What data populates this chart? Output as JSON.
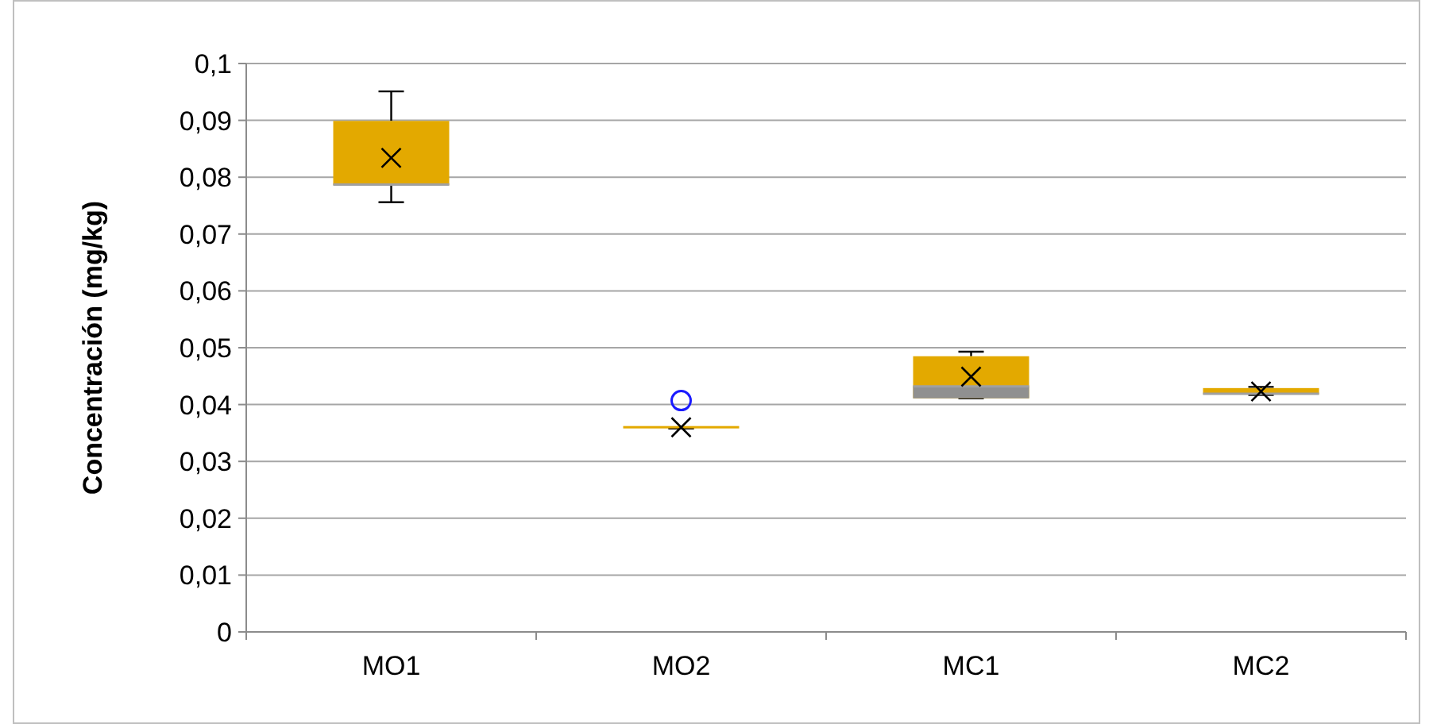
{
  "chart_data": {
    "type": "box",
    "ylabel": "Concentración (mg/kg)",
    "categories": [
      "MO1",
      "MO2",
      "MC1",
      "MC2"
    ],
    "series": [
      {
        "color": "#e3a900",
        "boxes": [
          {
            "low": 0.0756,
            "q1": 0.0786,
            "median": 0.0787,
            "q3": 0.0899,
            "high": 0.0951,
            "mean": 0.0834
          },
          {
            "low": 0.0358,
            "q1": 0.0358,
            "median": 0.0358,
            "q3": 0.0358,
            "high": 0.0358,
            "mean": 0.036,
            "outliers": [
              0.0407
            ]
          },
          {
            "low": 0.0411,
            "q1": 0.0411,
            "median": 0.0432,
            "q3": 0.0485,
            "high": 0.0493,
            "mean": 0.0449
          },
          {
            "low": 0.0417,
            "q1": 0.0418,
            "median": 0.0419,
            "q3": 0.0429,
            "high": 0.0431,
            "mean": 0.0423
          }
        ]
      }
    ],
    "ylim": [
      0,
      0.1
    ],
    "yticks": [
      {
        "value": 0,
        "label": "0"
      },
      {
        "value": 0.01,
        "label": "0,01"
      },
      {
        "value": 0.02,
        "label": "0,02"
      },
      {
        "value": 0.03,
        "label": "0,03"
      },
      {
        "value": 0.04,
        "label": "0,04"
      },
      {
        "value": 0.05,
        "label": "0,05"
      },
      {
        "value": 0.06,
        "label": "0,06"
      },
      {
        "value": 0.07,
        "label": "0,07"
      },
      {
        "value": 0.08,
        "label": "0,08"
      },
      {
        "value": 0.09,
        "label": "0,09"
      },
      {
        "value": 0.1,
        "label": "0,1"
      }
    ],
    "grid": "y",
    "marker": "cross"
  }
}
